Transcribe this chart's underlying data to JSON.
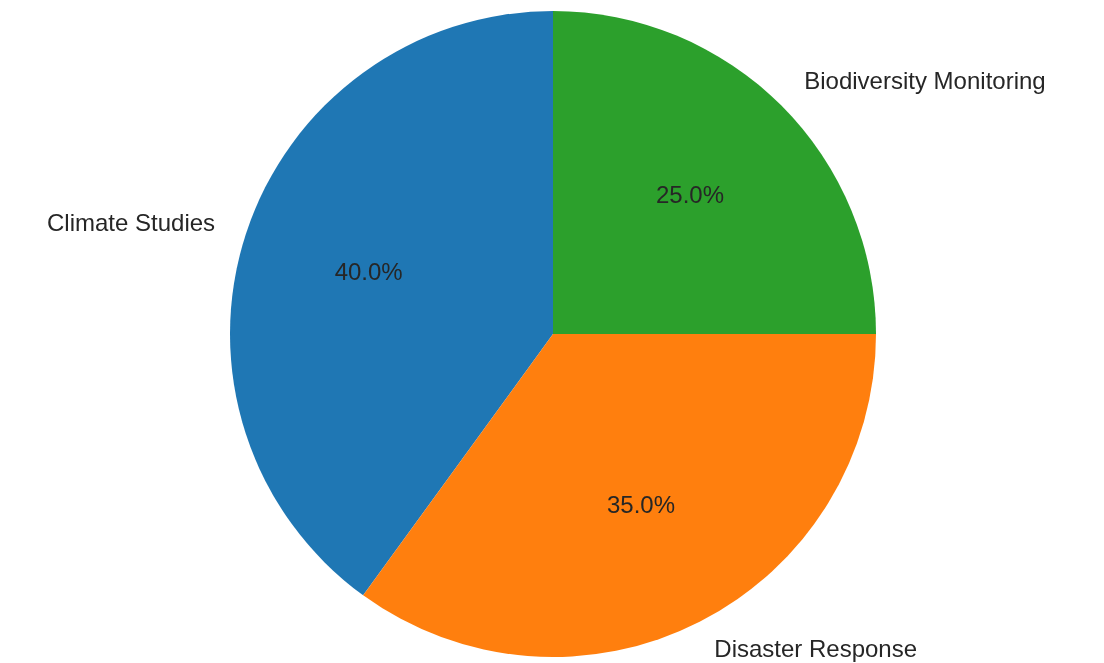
{
  "chart_data": {
    "type": "pie",
    "categories": [
      "Climate Studies",
      "Disaster Response",
      "Biodiversity Monitoring"
    ],
    "values": [
      40,
      35,
      25
    ],
    "colors": [
      "#1f77b4",
      "#ff7f0e",
      "#2ca02c"
    ],
    "value_labels": [
      "40.0%",
      "35.0%",
      "25.0%"
    ]
  }
}
